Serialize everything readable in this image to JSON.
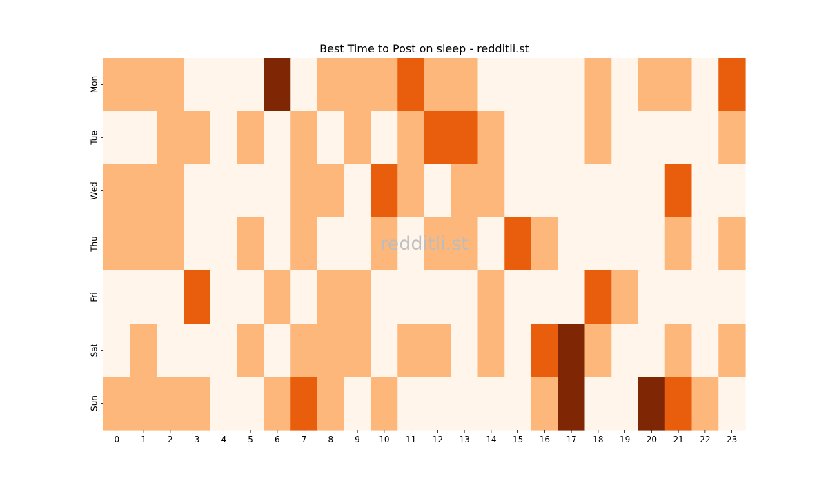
{
  "chart_data": {
    "type": "heatmap",
    "title": "Best Time to Post on sleep - redditli.st",
    "xlabel": "",
    "ylabel": "",
    "x": [
      "0",
      "1",
      "2",
      "3",
      "4",
      "5",
      "6",
      "7",
      "8",
      "9",
      "10",
      "11",
      "12",
      "13",
      "14",
      "15",
      "16",
      "17",
      "18",
      "19",
      "20",
      "21",
      "22",
      "23"
    ],
    "y": [
      "Mon",
      "Tue",
      "Wed",
      "Thu",
      "Fri",
      "Sat",
      "Sun"
    ],
    "values": [
      [
        1,
        1,
        1,
        0,
        0,
        0,
        3,
        0,
        1,
        1,
        1,
        2,
        1,
        1,
        0,
        0,
        0,
        0,
        1,
        0,
        1,
        1,
        0,
        2
      ],
      [
        0,
        0,
        1,
        1,
        0,
        1,
        0,
        1,
        0,
        1,
        0,
        1,
        2,
        2,
        1,
        0,
        0,
        0,
        1,
        0,
        0,
        0,
        0,
        1
      ],
      [
        1,
        1,
        1,
        0,
        0,
        0,
        0,
        1,
        1,
        0,
        2,
        1,
        0,
        1,
        1,
        0,
        0,
        0,
        0,
        0,
        0,
        2,
        0,
        0
      ],
      [
        1,
        1,
        1,
        0,
        0,
        1,
        0,
        1,
        0,
        0,
        1,
        0,
        1,
        1,
        0,
        2,
        1,
        0,
        0,
        0,
        0,
        1,
        0,
        1
      ],
      [
        0,
        0,
        0,
        2,
        0,
        0,
        1,
        0,
        1,
        1,
        0,
        0,
        0,
        0,
        1,
        0,
        0,
        0,
        2,
        1,
        0,
        0,
        0,
        0
      ],
      [
        0,
        1,
        0,
        0,
        0,
        1,
        0,
        1,
        1,
        1,
        0,
        1,
        1,
        0,
        1,
        0,
        2,
        3,
        1,
        0,
        0,
        1,
        0,
        1
      ],
      [
        1,
        1,
        1,
        1,
        0,
        0,
        1,
        2,
        1,
        0,
        1,
        0,
        0,
        0,
        0,
        0,
        1,
        3,
        0,
        0,
        3,
        2,
        1,
        0
      ]
    ],
    "value_range": [
      0,
      3
    ],
    "colormap": [
      "#fff5eb",
      "#fdb77a",
      "#e95e0d",
      "#7f2704"
    ],
    "colorbar": false,
    "grid": false
  },
  "watermark": "redditli.st"
}
